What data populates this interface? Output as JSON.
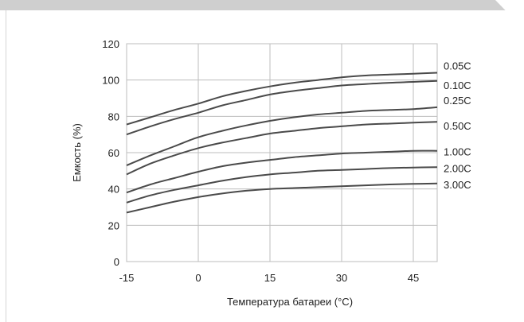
{
  "chart_data": {
    "type": "line",
    "title": "",
    "xlabel": "Температура батареи (°C)",
    "ylabel": "Емкость (%)",
    "xlim": [
      -15,
      50
    ],
    "ylim": [
      0,
      120
    ],
    "x_ticks": [
      "-15",
      "0",
      "15",
      "30",
      "45"
    ],
    "y_ticks": [
      "0",
      "20",
      "40",
      "60",
      "80",
      "100",
      "120"
    ],
    "grid": true,
    "legend": "inline labels at right end of each line",
    "line_color": "#4a4a4a",
    "grid_color": "#bdbdbd",
    "series": [
      {
        "name": "0.05C",
        "x": [
          -15,
          -10,
          -5,
          0,
          5,
          10,
          15,
          20,
          25,
          30,
          35,
          40,
          45,
          50
        ],
        "values": [
          75.5,
          79.5,
          83.5,
          87,
          91,
          94,
          96.5,
          98.5,
          100,
          101.5,
          102.5,
          103,
          103.5,
          104
        ]
      },
      {
        "name": "0.10C",
        "x": [
          -15,
          -10,
          -5,
          0,
          5,
          10,
          15,
          20,
          25,
          30,
          35,
          40,
          45,
          50
        ],
        "values": [
          70,
          74.5,
          78.5,
          82,
          86,
          89,
          92,
          94,
          95.5,
          97,
          97.8,
          98.5,
          99,
          99.5
        ]
      },
      {
        "name": "0.25C",
        "x": [
          -15,
          -10,
          -5,
          0,
          5,
          10,
          15,
          20,
          25,
          30,
          35,
          40,
          45,
          50
        ],
        "values": [
          53,
          58.5,
          63.5,
          68.5,
          72,
          75,
          77.5,
          79.5,
          81,
          82,
          83,
          83.5,
          84,
          85
        ]
      },
      {
        "name": "0.50C",
        "x": [
          -15,
          -10,
          -5,
          0,
          5,
          10,
          15,
          20,
          25,
          30,
          35,
          40,
          45,
          50
        ],
        "values": [
          48,
          54,
          58.5,
          62.5,
          65.5,
          68,
          70.5,
          72,
          73.5,
          74.5,
          75.5,
          76,
          76.5,
          77
        ]
      },
      {
        "name": "1.00C",
        "x": [
          -15,
          -10,
          -5,
          0,
          5,
          10,
          15,
          20,
          25,
          30,
          35,
          40,
          45,
          50
        ],
        "values": [
          38,
          42.5,
          46,
          49.5,
          52.5,
          54.5,
          56,
          57.5,
          58.5,
          59.5,
          60,
          60.5,
          61,
          61
        ]
      },
      {
        "name": "2.00C",
        "x": [
          -15,
          -10,
          -5,
          0,
          5,
          10,
          15,
          20,
          25,
          30,
          35,
          40,
          45,
          50
        ],
        "values": [
          32.5,
          36.5,
          39.5,
          42,
          44.5,
          46.5,
          48,
          49,
          50,
          50.5,
          51,
          51.5,
          51.8,
          52
        ]
      },
      {
        "name": "3.00C",
        "x": [
          -15,
          -10,
          -5,
          0,
          5,
          10,
          15,
          20,
          25,
          30,
          35,
          40,
          45,
          50
        ],
        "values": [
          27,
          30,
          33,
          35.5,
          37.5,
          39,
          40,
          40.5,
          41,
          41.5,
          42,
          42.5,
          42.8,
          43
        ]
      }
    ]
  }
}
